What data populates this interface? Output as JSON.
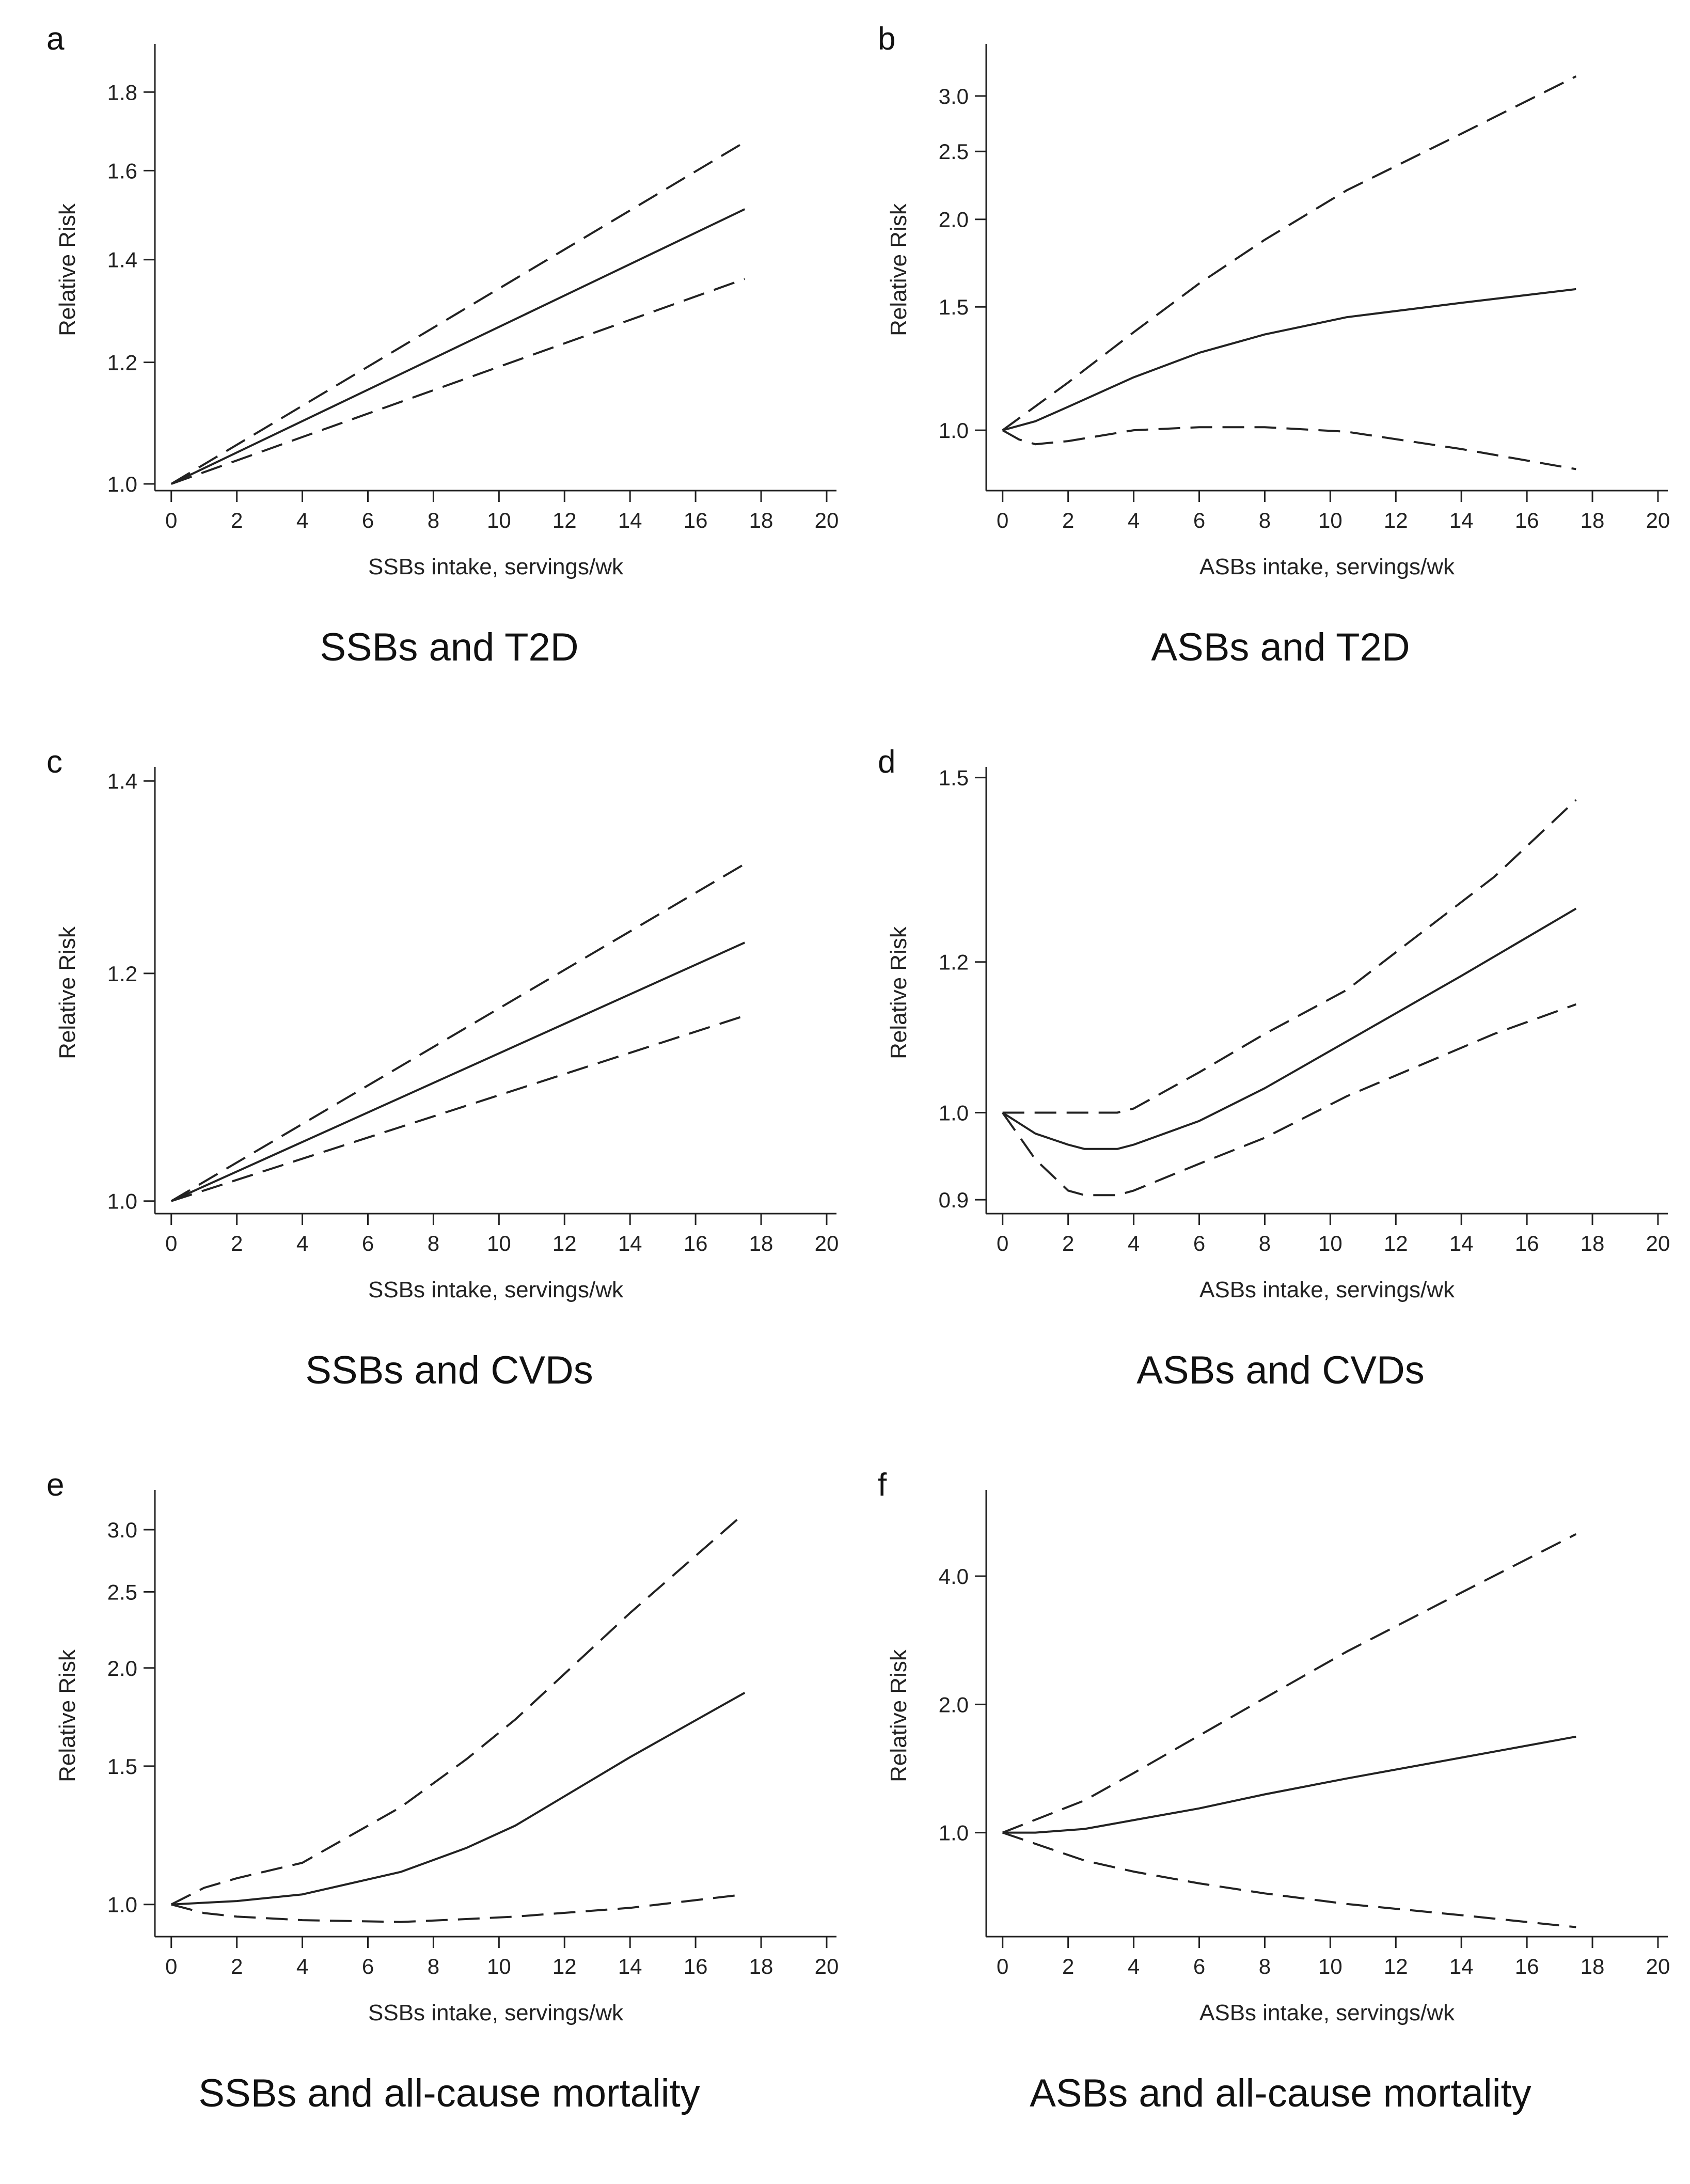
{
  "figure": {
    "panels": [
      {
        "letter": "a",
        "caption": "SSBs and T2D"
      },
      {
        "letter": "b",
        "caption": "ASBs and T2D"
      },
      {
        "letter": "c",
        "caption": "SSBs and CVDs"
      },
      {
        "letter": "d",
        "caption": "ASBs and CVDs"
      },
      {
        "letter": "e",
        "caption": "SSBs and all-cause mortality"
      },
      {
        "letter": "f",
        "caption": "ASBs and all-cause mortality"
      }
    ]
  },
  "chart_data": [
    {
      "type": "line",
      "panel": "a",
      "title": "SSBs and T2D",
      "xlabel": "SSBs intake, servings/wk",
      "ylabel": "Relative Risk",
      "xlim": [
        -0.5,
        20.3
      ],
      "ylim": [
        0.99,
        1.92
      ],
      "xticks": [
        0,
        2,
        4,
        6,
        8,
        10,
        12,
        14,
        16,
        18,
        20
      ],
      "xtick_labels": [
        "0",
        "2",
        "4",
        "6",
        "8",
        "10",
        "12",
        "14",
        "16",
        "18",
        "20"
      ],
      "yticks": [
        1.0,
        1.2,
        1.4,
        1.6,
        1.8
      ],
      "ytick_labels": [
        "1.0",
        "1.2",
        "1.4",
        "1.6",
        "1.8"
      ],
      "y_scale": "log",
      "series": [
        {
          "name": "estimate",
          "style": "solid",
          "x": [
            0,
            17.5
          ],
          "y": [
            1.0,
            1.51
          ]
        },
        {
          "name": "upper 95% CI",
          "style": "dashed",
          "x": [
            0,
            17.5
          ],
          "y": [
            1.0,
            1.67
          ]
        },
        {
          "name": "lower 95% CI",
          "style": "dashed",
          "x": [
            0,
            17.5
          ],
          "y": [
            1.0,
            1.36
          ]
        }
      ]
    },
    {
      "type": "line",
      "panel": "b",
      "title": "ASBs and T2D",
      "xlabel": "ASBs intake, servings/wk",
      "ylabel": "Relative Risk",
      "xlim": [
        -0.5,
        20.3
      ],
      "ylim": [
        0.82,
        3.5
      ],
      "xticks": [
        0,
        2,
        4,
        6,
        8,
        10,
        12,
        14,
        16,
        18,
        20
      ],
      "xtick_labels": [
        "0",
        "2",
        "4",
        "6",
        "8",
        "10",
        "12",
        "14",
        "16",
        "18",
        "20"
      ],
      "yticks": [
        1.0,
        1.5,
        2.0,
        2.5,
        3.0
      ],
      "ytick_labels": [
        "1.0",
        "1.5",
        "2.0",
        "2.5",
        "3.0"
      ],
      "y_scale": "log",
      "series": [
        {
          "name": "estimate",
          "style": "solid",
          "x": [
            0,
            1,
            2,
            4,
            6,
            8,
            10.5,
            14,
            17.5
          ],
          "y": [
            1.0,
            1.03,
            1.08,
            1.19,
            1.29,
            1.37,
            1.45,
            1.52,
            1.59
          ]
        },
        {
          "name": "upper 95% CI",
          "style": "dashed",
          "x": [
            0,
            2,
            4,
            6,
            8,
            10.5,
            14,
            17.5
          ],
          "y": [
            1.0,
            1.17,
            1.38,
            1.62,
            1.87,
            2.2,
            2.65,
            3.2
          ]
        },
        {
          "name": "lower 95% CI",
          "style": "dashed",
          "x": [
            0,
            0.5,
            1,
            2,
            4,
            6,
            8,
            10.5,
            14,
            17.5
          ],
          "y": [
            1.0,
            0.97,
            0.955,
            0.965,
            1.0,
            1.01,
            1.01,
            0.995,
            0.94,
            0.88
          ]
        }
      ]
    },
    {
      "type": "line",
      "panel": "c",
      "title": "SSBs and CVDs",
      "xlabel": "SSBs intake, servings/wk",
      "ylabel": "Relative Risk",
      "xlim": [
        -0.5,
        20.3
      ],
      "ylim": [
        0.99,
        1.41
      ],
      "xticks": [
        0,
        2,
        4,
        6,
        8,
        10,
        12,
        14,
        16,
        18,
        20
      ],
      "xtick_labels": [
        "0",
        "2",
        "4",
        "6",
        "8",
        "10",
        "12",
        "14",
        "16",
        "18",
        "20"
      ],
      "yticks": [
        1.0,
        1.2,
        1.4
      ],
      "ytick_labels": [
        "1.0",
        "1.2",
        "1.4"
      ],
      "y_scale": "log",
      "series": [
        {
          "name": "estimate",
          "style": "solid",
          "x": [
            0,
            17.5
          ],
          "y": [
            1.0,
            1.23
          ]
        },
        {
          "name": "upper 95% CI",
          "style": "dashed",
          "x": [
            0,
            17.5
          ],
          "y": [
            1.0,
            1.31
          ]
        },
        {
          "name": "lower 95% CI",
          "style": "dashed",
          "x": [
            0,
            17.5
          ],
          "y": [
            1.0,
            1.16
          ]
        }
      ]
    },
    {
      "type": "line",
      "panel": "d",
      "title": "ASBs and CVDs",
      "xlabel": "ASBs intake, servings/wk",
      "ylabel": "Relative Risk",
      "xlim": [
        -0.5,
        20.3
      ],
      "ylim": [
        0.885,
        1.51
      ],
      "xticks": [
        0,
        2,
        4,
        6,
        8,
        10,
        12,
        14,
        16,
        18,
        20
      ],
      "xtick_labels": [
        "0",
        "2",
        "4",
        "6",
        "8",
        "10",
        "12",
        "14",
        "16",
        "18",
        "20"
      ],
      "yticks": [
        0.9,
        1.0,
        1.2,
        1.5
      ],
      "ytick_labels": [
        "0.9",
        "1.0",
        "1.2",
        "1.5"
      ],
      "y_scale": "log",
      "series": [
        {
          "name": "estimate",
          "style": "solid",
          "x": [
            0,
            1,
            2,
            2.5,
            3.5,
            4,
            6,
            8,
            10.5,
            14,
            17.5
          ],
          "y": [
            1.0,
            0.975,
            0.962,
            0.957,
            0.957,
            0.962,
            0.99,
            1.03,
            1.09,
            1.18,
            1.28
          ]
        },
        {
          "name": "upper 95% CI",
          "style": "dashed",
          "x": [
            0,
            2,
            3.5,
            4,
            6,
            8,
            10.5,
            15,
            17.5
          ],
          "y": [
            1.0,
            1.0,
            1.0,
            1.005,
            1.05,
            1.1,
            1.16,
            1.33,
            1.46
          ]
        },
        {
          "name": "lower 95% CI",
          "style": "dashed",
          "x": [
            0,
            1,
            2,
            2.5,
            3.5,
            4,
            6,
            8,
            10.5,
            15,
            17.5
          ],
          "y": [
            1.0,
            0.945,
            0.91,
            0.905,
            0.905,
            0.91,
            0.94,
            0.97,
            1.02,
            1.1,
            1.14
          ]
        }
      ]
    },
    {
      "type": "line",
      "panel": "e",
      "title": "SSBs and all-cause mortality",
      "xlabel": "SSBs intake, servings/wk",
      "ylabel": "Relative Risk",
      "xlim": [
        -0.5,
        20.3
      ],
      "ylim": [
        0.91,
        3.32
      ],
      "xticks": [
        0,
        2,
        4,
        6,
        8,
        10,
        12,
        14,
        16,
        18,
        20
      ],
      "xtick_labels": [
        "0",
        "2",
        "4",
        "6",
        "8",
        "10",
        "12",
        "14",
        "16",
        "18",
        "20"
      ],
      "yticks": [
        1.0,
        1.5,
        2.0,
        2.5,
        3.0
      ],
      "ytick_labels": [
        "1.0",
        "1.5",
        "2.0",
        "2.5",
        "3.0"
      ],
      "y_scale": "log",
      "series": [
        {
          "name": "estimate",
          "style": "solid",
          "x": [
            0,
            2,
            4,
            7,
            9,
            10.5,
            14,
            17.5
          ],
          "y": [
            1.0,
            1.01,
            1.03,
            1.1,
            1.18,
            1.26,
            1.54,
            1.86
          ]
        },
        {
          "name": "upper 95% CI",
          "style": "dashed",
          "x": [
            0,
            1,
            2,
            4,
            7,
            9,
            10.5,
            14,
            17.5
          ],
          "y": [
            1.0,
            1.05,
            1.08,
            1.13,
            1.33,
            1.53,
            1.72,
            2.35,
            3.15
          ]
        },
        {
          "name": "lower 95% CI",
          "style": "dashed",
          "x": [
            0,
            1,
            2,
            4,
            7,
            9,
            10.5,
            14,
            17.5
          ],
          "y": [
            1.0,
            0.975,
            0.965,
            0.955,
            0.95,
            0.958,
            0.965,
            0.99,
            1.03
          ]
        }
      ]
    },
    {
      "type": "line",
      "panel": "f",
      "title": "ASBs and all-cause mortality",
      "xlabel": "ASBs intake, servings/wk",
      "ylabel": "Relative Risk",
      "xlim": [
        -0.5,
        20.3
      ],
      "ylim": [
        0.57,
        6.2
      ],
      "xticks": [
        0,
        2,
        4,
        6,
        8,
        10,
        12,
        14,
        16,
        18,
        20
      ],
      "xtick_labels": [
        "0",
        "2",
        "4",
        "6",
        "8",
        "10",
        "12",
        "14",
        "16",
        "18",
        "20"
      ],
      "yticks": [
        1.0,
        2.0,
        4.0
      ],
      "ytick_labels": [
        "1.0",
        "2.0",
        "4.0"
      ],
      "y_scale": "log",
      "series": [
        {
          "name": "estimate",
          "style": "solid",
          "x": [
            0,
            1,
            2.5,
            4,
            6,
            8,
            10.5,
            14,
            17.5
          ],
          "y": [
            1.0,
            1.0,
            1.02,
            1.07,
            1.14,
            1.23,
            1.34,
            1.5,
            1.68
          ]
        },
        {
          "name": "upper 95% CI",
          "style": "dashed",
          "x": [
            0,
            2.5,
            4,
            6,
            8,
            10.5,
            14,
            17.5
          ],
          "y": [
            1.0,
            1.19,
            1.38,
            1.69,
            2.07,
            2.66,
            3.66,
            5.02
          ]
        },
        {
          "name": "lower 95% CI",
          "style": "dashed",
          "x": [
            0,
            2.5,
            4,
            6,
            8,
            10.5,
            14,
            17.5
          ],
          "y": [
            1.0,
            0.86,
            0.81,
            0.76,
            0.72,
            0.68,
            0.64,
            0.6
          ]
        }
      ]
    }
  ]
}
